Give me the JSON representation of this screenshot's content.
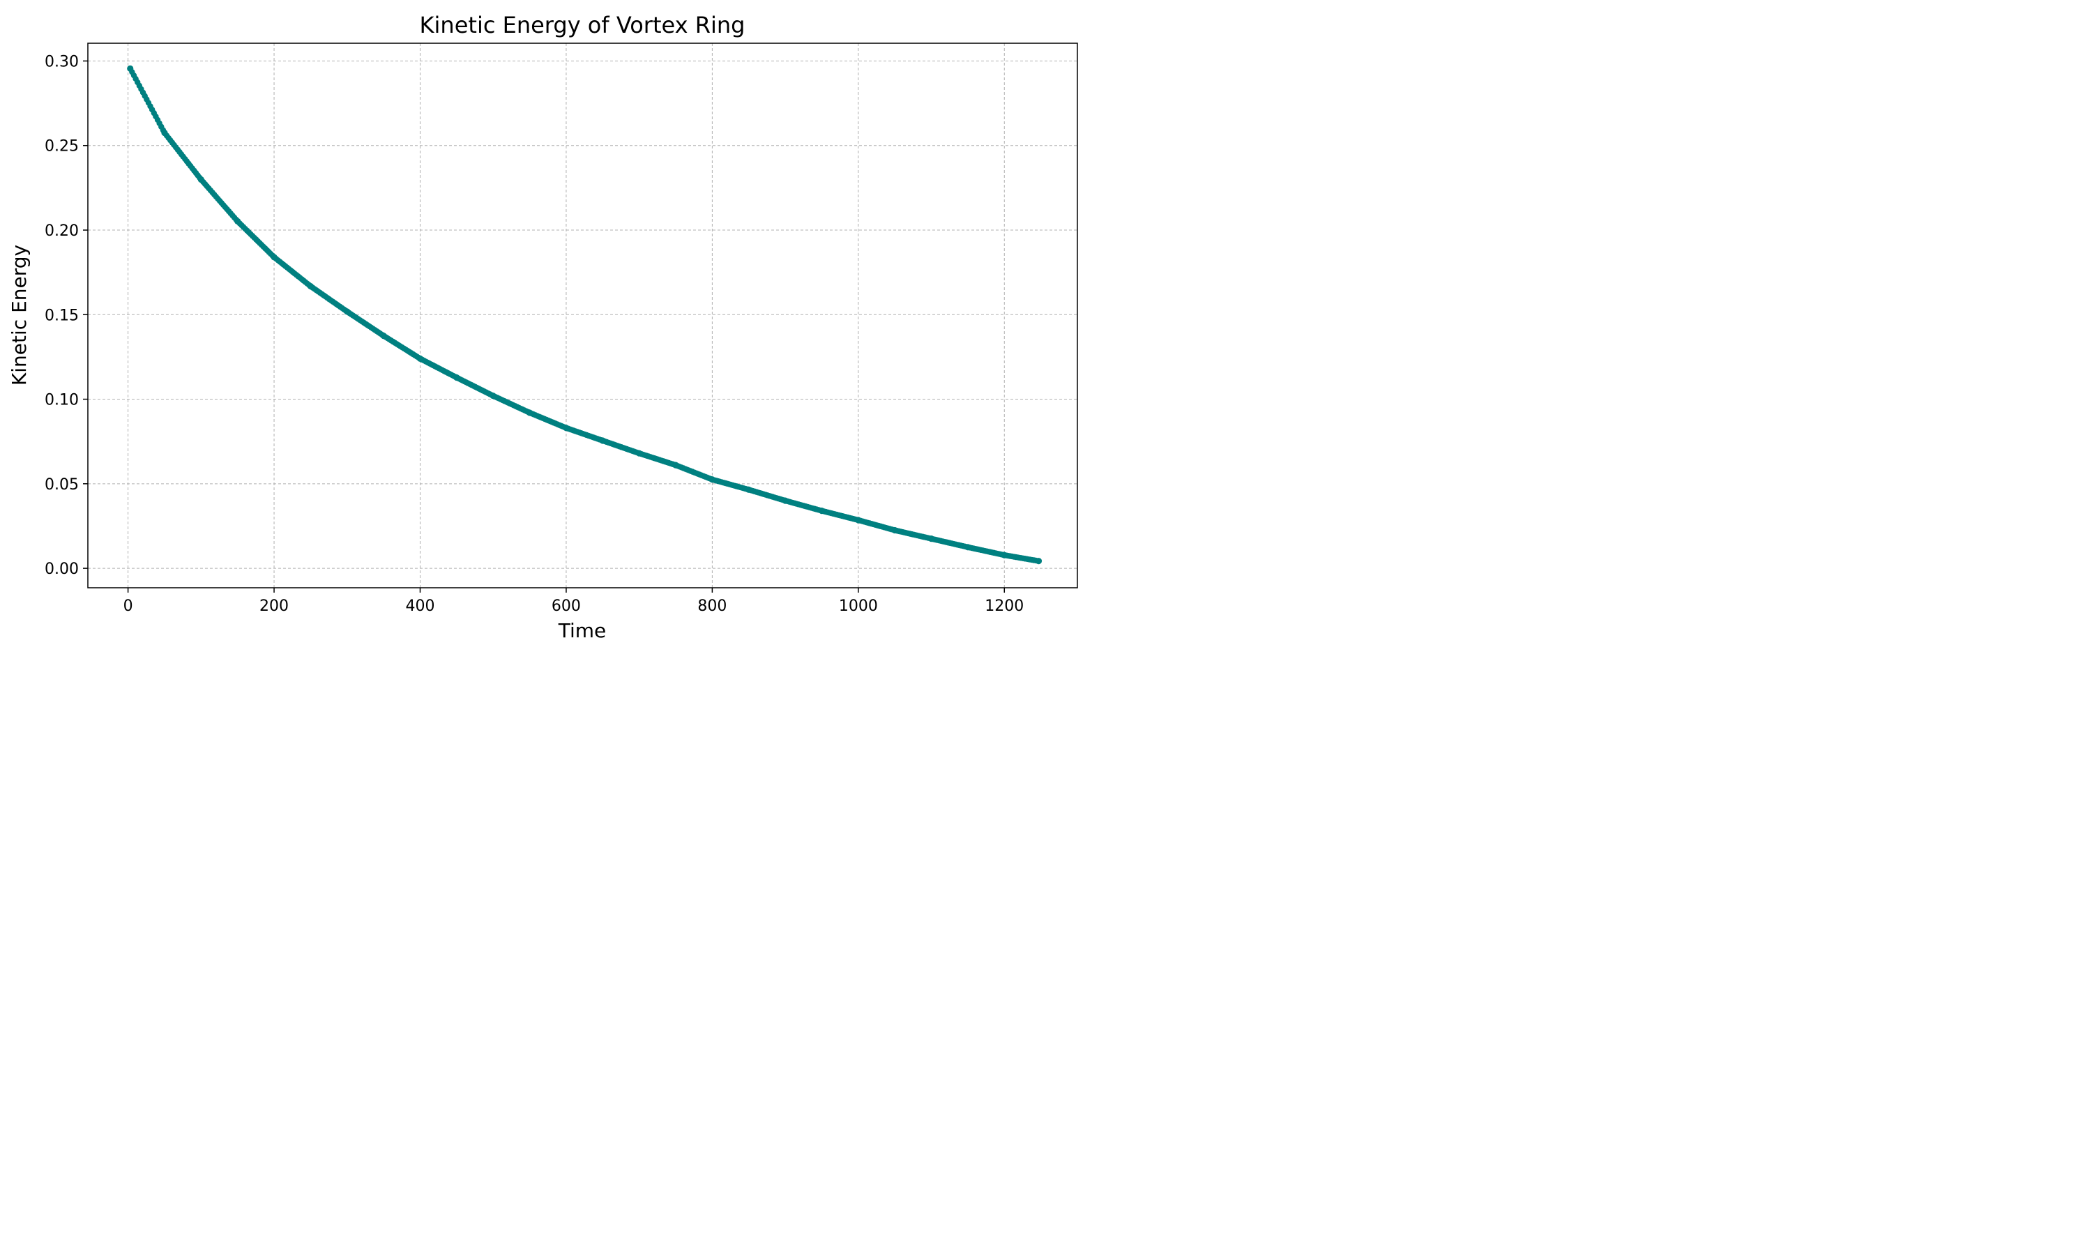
{
  "chart_data": {
    "type": "scatter",
    "title": "Kinetic Energy of Vortex Ring",
    "xlabel": "Time",
    "ylabel": "Kinetic Energy",
    "xlim": [
      -55,
      1300
    ],
    "ylim": [
      -0.0115,
      0.3105
    ],
    "xticks": [
      0,
      200,
      400,
      600,
      800,
      1000,
      1200
    ],
    "xtick_labels": [
      "0",
      "200",
      "400",
      "600",
      "800",
      "1000",
      "1200"
    ],
    "yticks": [
      0.0,
      0.05,
      0.1,
      0.15,
      0.2,
      0.25,
      0.3
    ],
    "ytick_labels": [
      "0.00",
      "0.05",
      "0.10",
      "0.15",
      "0.20",
      "0.25",
      "0.30"
    ],
    "grid": true,
    "marker_color": "#008080",
    "series": [
      {
        "x": [
          3,
          50,
          100,
          150,
          200,
          250,
          300,
          350,
          400,
          450,
          500,
          550,
          600,
          650,
          700,
          750,
          800,
          850,
          900,
          950,
          1000,
          1050,
          1100,
          1150,
          1200,
          1247
        ],
        "values": [
          0.2955,
          0.2575,
          0.2299,
          0.2052,
          0.184,
          0.1668,
          0.1518,
          0.1375,
          0.124,
          0.1128,
          0.102,
          0.092,
          0.083,
          0.0755,
          0.068,
          0.061,
          0.0525,
          0.0465,
          0.04,
          0.034,
          0.0285,
          0.0225,
          0.0175,
          0.0125,
          0.0078,
          0.0043
        ]
      }
    ]
  }
}
